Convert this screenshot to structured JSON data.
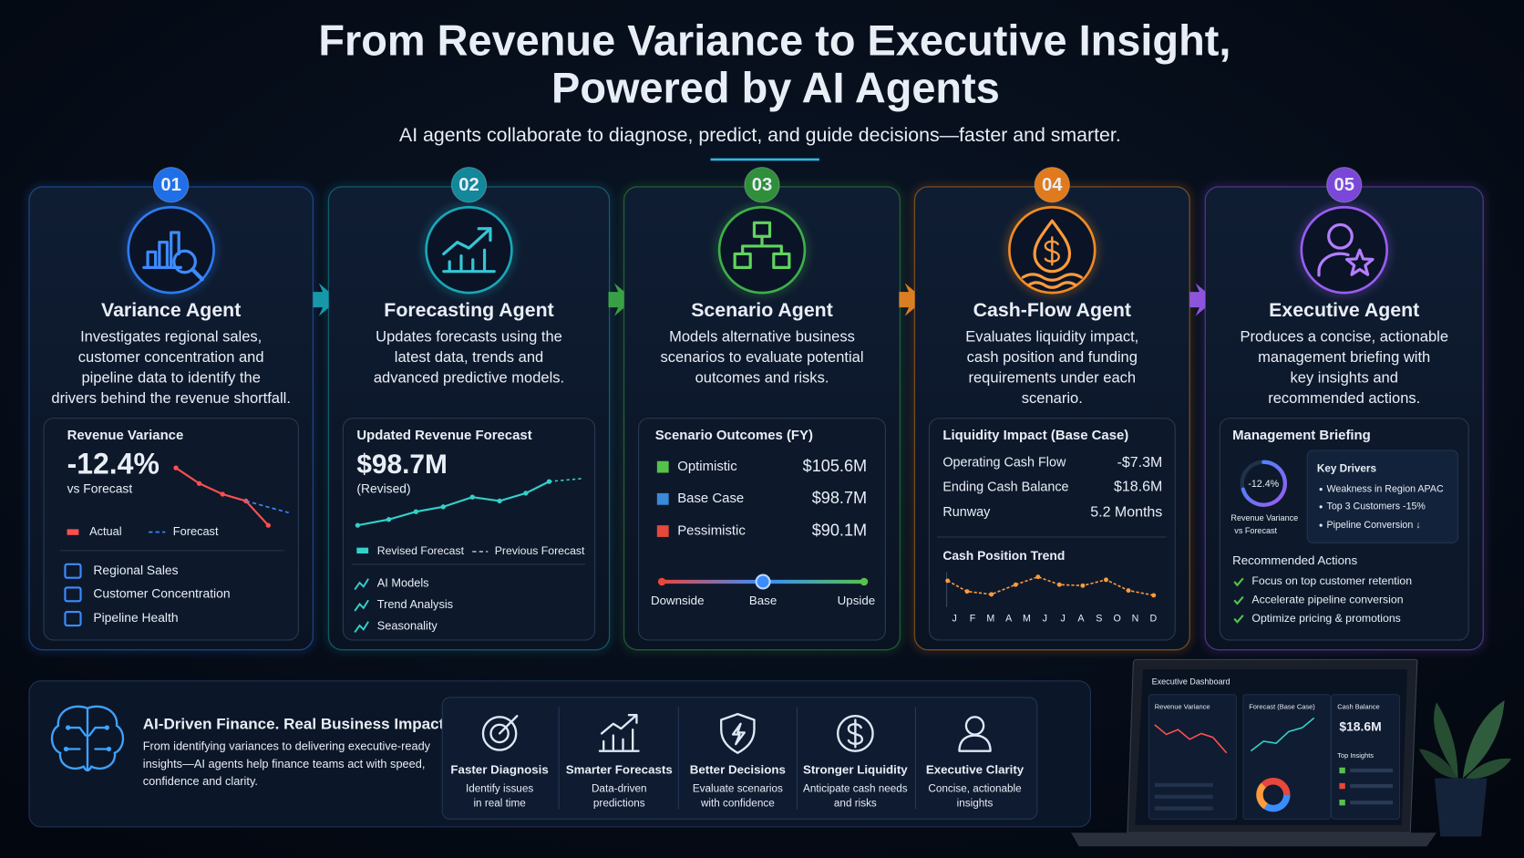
{
  "header": {
    "title_line1": "From Revenue Variance to Executive Insight,",
    "title_line2": "Powered by AI Agents",
    "subtitle": "AI agents collaborate to diagnose, predict, and guide decisions—faster and smarter."
  },
  "agents": [
    {
      "number": "01",
      "name": "Variance Agent",
      "description": [
        "Investigates regional sales,",
        "customer concentration and",
        "pipeline data to identify the",
        "drivers behind the revenue shortfall."
      ],
      "panel": {
        "title": "Revenue Variance",
        "value": "-12.4%",
        "value_caption": "vs Forecast",
        "legend": [
          "Actual",
          "Forecast"
        ],
        "items": [
          "Regional Sales",
          "Customer Concentration",
          "Pipeline Health"
        ]
      }
    },
    {
      "number": "02",
      "name": "Forecasting Agent",
      "description": [
        "Updates forecasts using the",
        "latest data, trends and",
        "advanced predictive models."
      ],
      "panel": {
        "title": "Updated Revenue Forecast",
        "value": "$98.7M",
        "value_caption": "(Revised)",
        "legend": [
          "Revised Forecast",
          "Previous Forecast"
        ],
        "items": [
          "AI Models",
          "Trend Analysis",
          "Seasonality"
        ]
      }
    },
    {
      "number": "03",
      "name": "Scenario Agent",
      "description": [
        "Models alternative business",
        "scenarios to evaluate potential",
        "outcomes and risks."
      ],
      "panel": {
        "title": "Scenario Outcomes (FY)",
        "rows": [
          {
            "label": "Optimistic",
            "value": "$105.6M"
          },
          {
            "label": "Base Case",
            "value": "$98.7M"
          },
          {
            "label": "Pessimistic",
            "value": "$90.1M"
          }
        ],
        "scale": [
          "Downside",
          "Base",
          "Upside"
        ]
      }
    },
    {
      "number": "04",
      "name": "Cash-Flow Agent",
      "description": [
        "Evaluates liquidity impact,",
        "cash position and funding",
        "requirements under each",
        "scenario."
      ],
      "panel": {
        "title": "Liquidity Impact (Base Case)",
        "rows": [
          {
            "label": "Operating Cash Flow",
            "value": "-$7.3M"
          },
          {
            "label": "Ending Cash Balance",
            "value": "$18.6M"
          },
          {
            "label": "Runway",
            "value": "5.2 Months"
          }
        ],
        "trend_title": "Cash Position Trend",
        "months": [
          "J",
          "F",
          "M",
          "A",
          "M",
          "J",
          "J",
          "A",
          "S",
          "O",
          "N",
          "D"
        ]
      }
    },
    {
      "number": "05",
      "name": "Executive Agent",
      "description": [
        "Produces a concise, actionable",
        "management briefing with",
        "key insights and",
        "recommended actions."
      ],
      "panel": {
        "title": "Management Briefing",
        "gauge_value": "-12.4%",
        "gauge_caption": [
          "Revenue Variance",
          "vs Forecast"
        ],
        "drivers_title": "Key Drivers",
        "drivers": [
          "Weakness in Region APAC",
          "Top 3 Customers -15%",
          "Pipeline Conversion ↓"
        ],
        "actions_title": "Recommended Actions",
        "actions": [
          "Focus on top customer retention",
          "Accelerate pipeline conversion",
          "Optimize pricing & promotions"
        ]
      }
    }
  ],
  "footer": {
    "title": "AI-Driven Finance. Real Business Impact.",
    "description": [
      "From identifying variances to delivering executive-ready",
      "insights—AI agents help finance teams act with speed,",
      "confidence and clarity."
    ],
    "benefits": [
      {
        "title": "Faster Diagnosis",
        "lines": [
          "Identify issues",
          "in real time"
        ]
      },
      {
        "title": "Smarter Forecasts",
        "lines": [
          "Data-driven",
          "predictions"
        ]
      },
      {
        "title": "Better Decisions",
        "lines": [
          "Evaluate scenarios",
          "with confidence"
        ]
      },
      {
        "title": "Stronger Liquidity",
        "lines": [
          "Anticipate cash needs",
          "and risks"
        ]
      },
      {
        "title": "Executive Clarity",
        "lines": [
          "Concise, actionable",
          "insights"
        ]
      }
    ]
  },
  "dashboard": {
    "title": "Executive Dashboard",
    "panels": [
      "Revenue Variance",
      "Forecast (Base Case)",
      "Cash Balance"
    ],
    "cash_value": "$18.6M",
    "insights_title": "Top Insights"
  }
}
